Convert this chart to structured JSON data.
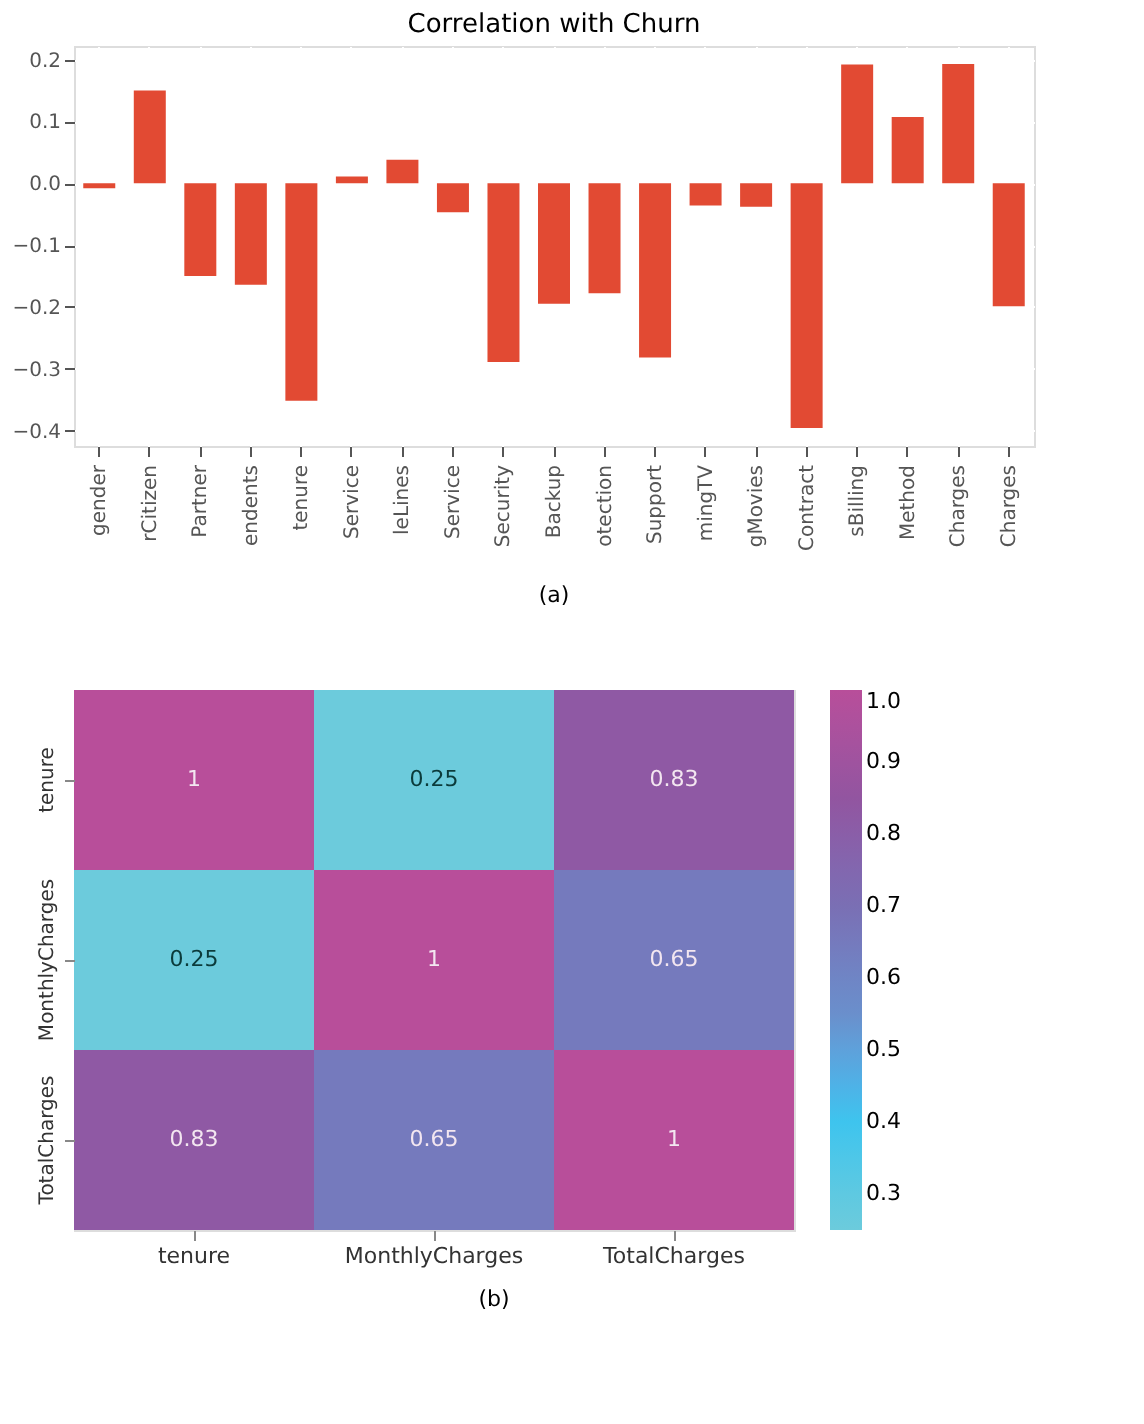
{
  "chart_data": [
    {
      "type": "bar",
      "title": "Correlation with Churn",
      "categories": [
        "gender",
        "rCitizen",
        "Partner",
        "endents",
        "tenure",
        "Service",
        "leLines",
        "Service",
        "Security",
        "Backup",
        "otection",
        "Support",
        "mingTV",
        "gMovies",
        "Contract",
        "sBilling",
        "Method",
        "Charges",
        "Charges"
      ],
      "values": [
        -0.008,
        0.15,
        -0.15,
        -0.164,
        -0.352,
        0.011,
        0.038,
        -0.047,
        -0.289,
        -0.195,
        -0.178,
        -0.282,
        -0.036,
        -0.038,
        -0.396,
        0.192,
        0.107,
        0.193,
        -0.199
      ],
      "color": "#e24a33",
      "ylim": [
        -0.425,
        0.222
      ],
      "yticks": [
        -0.4,
        -0.3,
        -0.2,
        -0.1,
        {
          "value": 0,
          "label": "0.0"
        },
        0.1,
        0.2
      ],
      "grid": true,
      "annotations": [
        "(a)"
      ]
    },
    {
      "type": "heatmap",
      "categories": [
        "tenure",
        "MonthlyCharges",
        "TotalCharges"
      ],
      "y_categories": [
        "tenure",
        "MonthlyCharges",
        "TotalCharges"
      ],
      "cells": [
        [
          1,
          0.25,
          0.83
        ],
        [
          0.25,
          1,
          0.65
        ],
        [
          0.83,
          0.65,
          1
        ]
      ],
      "clim": [
        0.25,
        1.0
      ],
      "cticks": [
        0.3,
        0.4,
        0.5,
        0.6,
        0.7,
        0.8,
        0.9,
        {
          "value": 1,
          "label": "1.0"
        }
      ],
      "data_labels": true,
      "annotations": [
        "(b)"
      ]
    }
  ]
}
